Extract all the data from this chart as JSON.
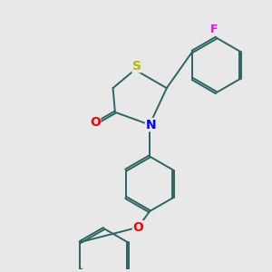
{
  "bg_color": "#e8e8e8",
  "bond_color": "#2d6464",
  "bond_width": 1.4,
  "atom_colors": {
    "S": "#b8b800",
    "N": "#0000ff",
    "O": "#ff0000",
    "F": "#ff00ff",
    "C": "#2d6464"
  }
}
